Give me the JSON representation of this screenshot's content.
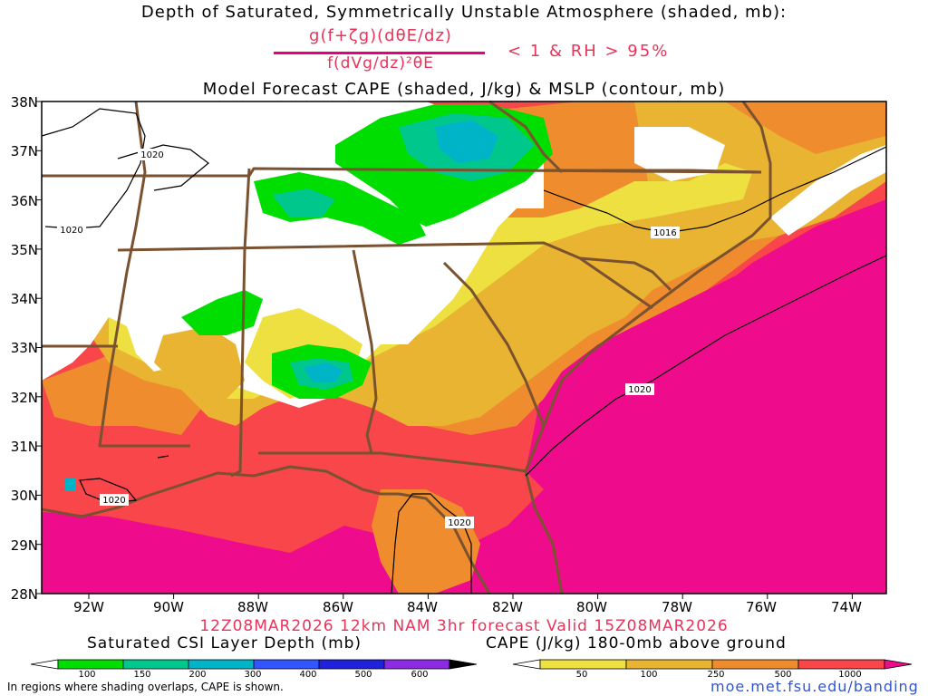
{
  "titles": {
    "line1": "Depth of Saturated, Symmetrically Unstable Atmosphere (shaded, mb):",
    "formula_numerator": "g(f+ζg)(dθE/dz)",
    "formula_denominator": "f(dVg/dz)²θE",
    "formula_condition": "< 1 & RH > 95%",
    "line2": "Model Forecast CAPE (shaded, J/kg) & MSLP (contour, mb)"
  },
  "axes": {
    "lat_labels": [
      "38N",
      "37N",
      "36N",
      "35N",
      "34N",
      "33N",
      "32N",
      "31N",
      "30N",
      "29N",
      "28N"
    ],
    "lon_labels": [
      "92W",
      "90W",
      "88W",
      "86W",
      "84W",
      "82W",
      "80W",
      "78W",
      "76W",
      "74W"
    ]
  },
  "isobars": [
    {
      "label": "1020"
    },
    {
      "label": "1020"
    },
    {
      "label": "1016"
    },
    {
      "label": "1020"
    },
    {
      "label": "1020"
    },
    {
      "label": "1020"
    }
  ],
  "forecast_line": "12Z08MAR2026 12km NAM 3hr forecast Valid 15Z08MAR2026",
  "colorbars": {
    "csi": {
      "title": "Saturated CSI Layer Depth (mb)",
      "labels": [
        "100",
        "150",
        "200",
        "300",
        "400",
        "500",
        "600"
      ],
      "colors": [
        "#ffffff",
        "#00dd00",
        "#00c88c",
        "#00b4c8",
        "#3355ff",
        "#1f22dd",
        "#8a2be2",
        "#000000"
      ]
    },
    "cape": {
      "title": "CAPE (J/kg) 180-0mb above ground",
      "labels": [
        "50",
        "100",
        "250",
        "500",
        "1000"
      ],
      "colors": [
        "#ffffff",
        "#ede040",
        "#e8b432",
        "#ef8d2e",
        "#f8464a",
        "#ee0c8c"
      ]
    }
  },
  "footer": {
    "note": "In regions where shading overlaps, CAPE is shown.",
    "site": "moe.met.fsu.edu/banding"
  }
}
